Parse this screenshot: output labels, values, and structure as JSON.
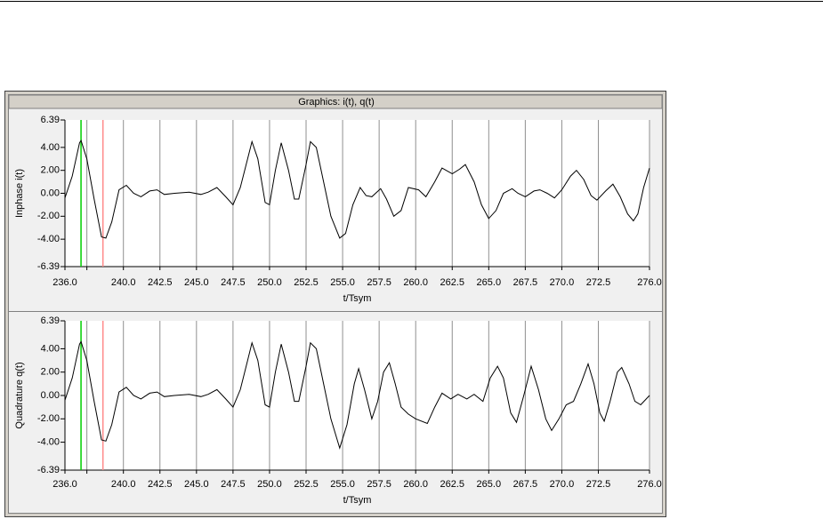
{
  "window_title": "Graphics: i(t), q(t)",
  "chart_data": [
    {
      "type": "line",
      "ylabel": "Inphase i(t)",
      "xlabel": "t/Tsym",
      "x": [
        236.0,
        236.5,
        237.0,
        237.1,
        237.5,
        238.0,
        238.5,
        238.8,
        239.2,
        239.7,
        240.2,
        240.7,
        241.2,
        241.8,
        242.3,
        242.8,
        243.5,
        244.5,
        245.3,
        245.8,
        246.4,
        247.0,
        247.5,
        248.0,
        248.5,
        248.8,
        249.2,
        249.7,
        250.0,
        250.4,
        250.8,
        251.3,
        251.7,
        252.0,
        252.5,
        252.8,
        253.2,
        253.7,
        254.2,
        254.8,
        255.2,
        255.7,
        256.2,
        256.6,
        257.0,
        257.6,
        258.0,
        258.5,
        259.0,
        259.5,
        260.2,
        260.7,
        261.3,
        261.8,
        262.5,
        263.0,
        263.4,
        264.0,
        264.5,
        265.0,
        265.5,
        266.0,
        266.6,
        267.0,
        267.5,
        268.1,
        268.5,
        269.0,
        269.5,
        270.0,
        270.6,
        271.0,
        271.5,
        272.0,
        272.4,
        273.0,
        273.5,
        274.0,
        274.5,
        274.9,
        275.2,
        275.6,
        276.0
      ],
      "series": [
        {
          "color": "#000000",
          "values": [
            -0.4,
            1.5,
            4.4,
            4.6,
            3.0,
            -0.5,
            -3.8,
            -3.9,
            -2.5,
            0.3,
            0.7,
            0.0,
            -0.3,
            0.2,
            0.3,
            -0.1,
            0.0,
            0.1,
            -0.1,
            0.1,
            0.5,
            -0.3,
            -1.0,
            0.5,
            3.0,
            4.5,
            3.0,
            -0.8,
            -1.0,
            2.0,
            4.4,
            2.0,
            -0.5,
            -0.5,
            2.5,
            4.5,
            4.0,
            1.0,
            -2.0,
            -3.9,
            -3.5,
            -1.0,
            0.5,
            -0.2,
            -0.3,
            0.4,
            -0.5,
            -2.0,
            -1.5,
            0.5,
            0.3,
            -0.3,
            1.0,
            2.2,
            1.7,
            2.1,
            2.5,
            1.0,
            -1.0,
            -2.2,
            -1.5,
            0.0,
            0.4,
            0.0,
            -0.3,
            0.2,
            0.3,
            0.0,
            -0.4,
            0.3,
            1.5,
            2.0,
            1.2,
            -0.2,
            -0.6,
            0.2,
            0.8,
            -0.3,
            -1.8,
            -2.4,
            -1.8,
            0.5,
            2.2
          ]
        }
      ],
      "xlim": [
        236.0,
        276.0
      ],
      "ylim": [
        -6.39,
        6.39
      ],
      "yticks": [
        -6.39,
        {
          "value": -4,
          "label": "-4.00"
        },
        {
          "value": -2,
          "label": "-2.00"
        },
        {
          "value": 0,
          "label": "0.00"
        },
        {
          "value": 2,
          "label": "2.00"
        },
        {
          "value": 4,
          "label": "4.00"
        },
        6.39
      ],
      "xticks": [
        {
          "value": 236,
          "label": "236.0"
        },
        {
          "value": 237.5
        },
        {
          "value": 240,
          "label": "240.0"
        },
        242.5,
        {
          "value": 245,
          "label": "245.0"
        },
        247.5,
        {
          "value": 250,
          "label": "250.0"
        },
        252.5,
        {
          "value": 255,
          "label": "255.0"
        },
        257.5,
        {
          "value": 260,
          "label": "260.0"
        },
        262.5,
        {
          "value": 265,
          "label": "265.0"
        },
        267.5,
        {
          "value": 270,
          "label": "270.0"
        },
        272.5,
        {
          "value": 276,
          "label": "276.0"
        }
      ],
      "grid": true,
      "cursors": [
        {
          "x": 237.1,
          "color": "#00d000"
        },
        {
          "x": 238.6,
          "color": "#ff8a8a"
        }
      ]
    },
    {
      "type": "line",
      "ylabel": "Quadrature q(t)",
      "xlabel": "t/Tsym",
      "x": [
        236.0,
        236.5,
        237.0,
        237.1,
        237.5,
        238.0,
        238.5,
        238.8,
        239.2,
        239.7,
        240.2,
        240.7,
        241.2,
        241.8,
        242.3,
        242.8,
        243.5,
        244.5,
        245.3,
        245.8,
        246.4,
        247.0,
        247.5,
        248.0,
        248.5,
        248.8,
        249.2,
        249.7,
        250.0,
        250.4,
        250.8,
        251.3,
        251.7,
        252.0,
        252.5,
        252.8,
        253.2,
        253.7,
        254.2,
        254.8,
        255.3,
        255.8,
        256.1,
        256.5,
        257.0,
        257.4,
        257.8,
        258.2,
        258.6,
        259.0,
        259.5,
        260.0,
        260.8,
        261.3,
        261.8,
        262.4,
        262.9,
        263.5,
        264.0,
        264.6,
        265.1,
        265.6,
        266.0,
        266.5,
        266.9,
        267.4,
        267.9,
        268.4,
        268.9,
        269.3,
        269.8,
        270.3,
        270.8,
        271.3,
        271.8,
        272.2,
        272.6,
        272.9,
        273.3,
        273.8,
        274.1,
        274.6,
        275.0,
        275.4,
        276.0
      ],
      "series": [
        {
          "color": "#000000",
          "values": [
            -0.4,
            1.5,
            4.4,
            4.6,
            3.0,
            -0.5,
            -3.8,
            -3.9,
            -2.5,
            0.3,
            0.7,
            0.0,
            -0.3,
            0.2,
            0.3,
            -0.1,
            0.0,
            0.1,
            -0.1,
            0.1,
            0.5,
            -0.3,
            -1.0,
            0.5,
            3.0,
            4.5,
            3.0,
            -0.8,
            -1.0,
            2.0,
            4.4,
            2.0,
            -0.5,
            -0.5,
            2.5,
            4.5,
            4.0,
            1.0,
            -2.0,
            -4.5,
            -2.5,
            1.0,
            2.3,
            0.5,
            -2.0,
            -0.5,
            2.0,
            2.8,
            1.0,
            -1.0,
            -1.6,
            -2.0,
            -2.4,
            -1.0,
            0.2,
            -0.3,
            0.1,
            -0.3,
            0.1,
            -0.5,
            1.5,
            2.5,
            1.5,
            -1.5,
            -2.3,
            0.0,
            2.5,
            0.5,
            -2.0,
            -3.0,
            -2.0,
            -0.8,
            -0.5,
            1.0,
            2.7,
            1.0,
            -1.5,
            -2.2,
            -0.5,
            2.0,
            2.4,
            1.0,
            -0.5,
            -0.8,
            0.0
          ]
        }
      ],
      "xlim": [
        236.0,
        276.0
      ],
      "ylim": [
        -6.39,
        6.39
      ],
      "yticks": [
        -6.39,
        {
          "value": -4,
          "label": "-4.00"
        },
        {
          "value": -2,
          "label": "-2.00"
        },
        {
          "value": 0,
          "label": "0.00"
        },
        {
          "value": 2,
          "label": "2.00"
        },
        {
          "value": 4,
          "label": "4.00"
        },
        6.39
      ],
      "xticks": [
        {
          "value": 236,
          "label": "236.0"
        },
        {
          "value": 237.5
        },
        {
          "value": 240,
          "label": "240.0"
        },
        242.5,
        {
          "value": 245,
          "label": "245.0"
        },
        247.5,
        {
          "value": 250,
          "label": "250.0"
        },
        252.5,
        {
          "value": 255,
          "label": "255.0"
        },
        257.5,
        {
          "value": 260,
          "label": "260.0"
        },
        262.5,
        {
          "value": 265,
          "label": "265.0"
        },
        267.5,
        {
          "value": 270,
          "label": "270.0"
        },
        272.5,
        {
          "value": 276,
          "label": "276.0"
        }
      ],
      "grid": true,
      "cursors": [
        {
          "x": 237.1,
          "color": "#00d000"
        },
        {
          "x": 238.6,
          "color": "#ff8a8a"
        }
      ]
    }
  ]
}
